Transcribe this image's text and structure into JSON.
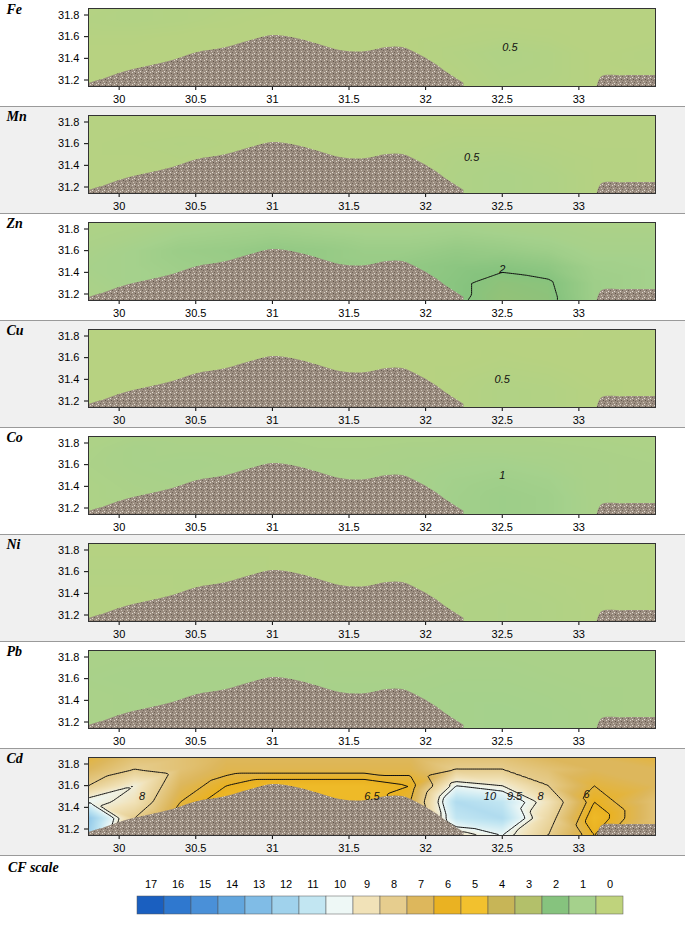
{
  "chart_data": {
    "type": "contour_map",
    "xlim": [
      29.8,
      33.5
    ],
    "xticks": [
      30,
      30.5,
      31,
      31.5,
      32,
      32.5,
      33
    ],
    "ylim": [
      31.14,
      31.86
    ],
    "yticks": [
      31.2,
      31.4,
      31.6,
      31.8
    ],
    "cell_lon": [
      29.8,
      30.1,
      30.4,
      30.7,
      31.0,
      31.3,
      31.6,
      31.9,
      32.2,
      32.5,
      32.8,
      33.1,
      33.5
    ],
    "cell_lat": [
      31.14,
      31.3,
      31.45,
      31.6,
      31.75,
      31.86
    ],
    "land": [
      [
        [
          29.8,
          31.17
        ],
        [
          29.9,
          31.21
        ],
        [
          30.0,
          31.26
        ],
        [
          30.1,
          31.3
        ],
        [
          30.2,
          31.33
        ],
        [
          30.35,
          31.38
        ],
        [
          30.5,
          31.45
        ],
        [
          30.7,
          31.5
        ],
        [
          30.85,
          31.56
        ],
        [
          31.0,
          31.61
        ],
        [
          31.1,
          31.6
        ],
        [
          31.2,
          31.57
        ],
        [
          31.3,
          31.53
        ],
        [
          31.45,
          31.47
        ],
        [
          31.6,
          31.46
        ],
        [
          31.75,
          31.5
        ],
        [
          31.85,
          31.5
        ],
        [
          31.95,
          31.44
        ],
        [
          32.05,
          31.36
        ],
        [
          32.15,
          31.26
        ],
        [
          32.25,
          31.17
        ]
      ],
      [
        [
          33.12,
          31.14
        ],
        [
          33.15,
          31.23
        ],
        [
          33.3,
          31.24
        ],
        [
          33.5,
          31.24
        ]
      ]
    ],
    "panels": [
      {
        "title": "Fe",
        "cf": [
          [
            0.3,
            0.3,
            0.3,
            0.3,
            0.3,
            0.3,
            0.3,
            0.3,
            0.35,
            0.5,
            0.45,
            0.3,
            0.3
          ],
          [
            0.3,
            0.3,
            0.3,
            0.3,
            0.3,
            0.3,
            0.3,
            0.3,
            0.4,
            0.55,
            0.5,
            0.3,
            0.35
          ],
          [
            0.3,
            0.3,
            0.3,
            0.3,
            0.3,
            0.3,
            0.3,
            0.3,
            0.45,
            0.6,
            0.5,
            0.3,
            0.4
          ],
          [
            0.35,
            0.35,
            0.3,
            0.3,
            0.3,
            0.3,
            0.3,
            0.3,
            0.35,
            0.4,
            0.35,
            0.3,
            0.3
          ],
          [
            0.45,
            0.5,
            0.45,
            0.35,
            0.3,
            0.3,
            0.3,
            0.3,
            0.3,
            0.3,
            0.3,
            0.3,
            0.3
          ],
          [
            0.4,
            0.5,
            0.45,
            0.4,
            0.35,
            0.3,
            0.3,
            0.3,
            0.3,
            0.3,
            0.3,
            0.3,
            0.3
          ]
        ],
        "contour_levels": [],
        "labels": [
          {
            "lon": 32.55,
            "lat": 31.5,
            "text": "0.5"
          }
        ]
      },
      {
        "title": "Mn",
        "cf": [
          [
            0.35,
            0.35,
            0.35,
            0.35,
            0.35,
            0.35,
            0.35,
            0.4,
            0.6,
            0.7,
            0.6,
            0.4,
            0.35
          ],
          [
            0.35,
            0.35,
            0.35,
            0.35,
            0.35,
            0.35,
            0.35,
            0.4,
            0.6,
            0.7,
            0.6,
            0.4,
            0.35
          ],
          [
            0.35,
            0.35,
            0.4,
            0.35,
            0.35,
            0.35,
            0.35,
            0.4,
            0.55,
            0.6,
            0.5,
            0.4,
            0.35
          ],
          [
            0.35,
            0.4,
            0.45,
            0.4,
            0.35,
            0.35,
            0.35,
            0.35,
            0.45,
            0.45,
            0.4,
            0.35,
            0.35
          ],
          [
            0.35,
            0.35,
            0.35,
            0.35,
            0.35,
            0.35,
            0.35,
            0.35,
            0.35,
            0.35,
            0.35,
            0.35,
            0.35
          ],
          [
            0.35,
            0.35,
            0.35,
            0.35,
            0.35,
            0.35,
            0.35,
            0.3,
            0.25,
            0.25,
            0.3,
            0.35,
            0.35
          ]
        ],
        "contour_levels": [],
        "labels": [
          {
            "lon": 32.3,
            "lat": 31.47,
            "text": "0.5"
          }
        ]
      },
      {
        "title": "Zn",
        "cf": [
          [
            0.7,
            0.9,
            1.0,
            1.1,
            1.2,
            1.3,
            1.3,
            1.5,
            1.9,
            2.3,
            2.2,
            1.2,
            1.0
          ],
          [
            0.8,
            1.0,
            1.1,
            1.2,
            1.3,
            1.4,
            1.4,
            1.6,
            1.9,
            2.2,
            2.1,
            1.2,
            1.0
          ],
          [
            0.9,
            1.0,
            1.2,
            1.3,
            1.5,
            1.5,
            1.4,
            1.6,
            1.8,
            1.9,
            1.7,
            1.1,
            1.0
          ],
          [
            0.8,
            1.0,
            1.3,
            1.4,
            1.6,
            1.5,
            1.3,
            1.3,
            1.5,
            1.4,
            1.2,
            0.9,
            0.9
          ],
          [
            0.7,
            0.8,
            1.0,
            1.1,
            1.2,
            1.1,
            1.0,
            1.0,
            1.1,
            1.0,
            0.9,
            0.8,
            0.8
          ],
          [
            0.6,
            0.7,
            0.8,
            0.9,
            1.0,
            0.9,
            0.8,
            0.8,
            0.9,
            0.8,
            0.8,
            0.7,
            0.7
          ]
        ],
        "contour_levels": [
          2
        ],
        "labels": [
          {
            "lon": 32.5,
            "lat": 31.43,
            "text": "2"
          }
        ]
      },
      {
        "title": "Cu",
        "cf": [
          [
            0.3,
            0.3,
            0.3,
            0.3,
            0.3,
            0.3,
            0.3,
            0.3,
            0.4,
            0.55,
            0.5,
            0.35,
            0.3
          ],
          [
            0.3,
            0.3,
            0.3,
            0.3,
            0.3,
            0.3,
            0.3,
            0.3,
            0.4,
            0.55,
            0.5,
            0.35,
            0.3
          ],
          [
            0.3,
            0.3,
            0.3,
            0.3,
            0.3,
            0.3,
            0.3,
            0.3,
            0.35,
            0.45,
            0.4,
            0.3,
            0.3
          ],
          [
            0.3,
            0.3,
            0.3,
            0.3,
            0.3,
            0.3,
            0.3,
            0.3,
            0.3,
            0.35,
            0.3,
            0.3,
            0.3
          ],
          [
            0.3,
            0.3,
            0.3,
            0.3,
            0.3,
            0.3,
            0.3,
            0.3,
            0.3,
            0.3,
            0.3,
            0.3,
            0.3
          ],
          [
            0.3,
            0.3,
            0.3,
            0.3,
            0.3,
            0.3,
            0.3,
            0.3,
            0.3,
            0.25,
            0.25,
            0.3,
            0.3
          ]
        ],
        "contour_levels": [],
        "labels": [
          {
            "lon": 32.5,
            "lat": 31.4,
            "text": "0.5"
          }
        ]
      },
      {
        "title": "Co",
        "cf": [
          [
            0.7,
            0.7,
            0.75,
            0.75,
            0.8,
            0.8,
            0.8,
            0.9,
            1.1,
            1.25,
            1.15,
            0.8,
            0.75
          ],
          [
            0.7,
            0.75,
            0.8,
            0.8,
            0.8,
            0.8,
            0.8,
            0.9,
            1.1,
            1.25,
            1.15,
            0.8,
            0.75
          ],
          [
            0.7,
            0.8,
            0.85,
            0.85,
            0.85,
            0.8,
            0.8,
            0.9,
            1.05,
            1.15,
            1.05,
            0.8,
            0.75
          ],
          [
            0.75,
            0.85,
            0.9,
            0.85,
            0.85,
            0.8,
            0.8,
            0.85,
            0.95,
            1.0,
            0.9,
            0.8,
            0.75
          ],
          [
            0.7,
            0.85,
            0.8,
            0.8,
            0.8,
            0.75,
            0.75,
            0.8,
            0.8,
            0.8,
            0.8,
            0.75,
            0.7
          ],
          [
            0.65,
            0.75,
            0.75,
            0.75,
            0.75,
            0.7,
            0.7,
            0.7,
            0.75,
            0.75,
            0.7,
            0.7,
            0.7
          ]
        ],
        "contour_levels": [],
        "labels": [
          {
            "lon": 32.5,
            "lat": 31.5,
            "text": "1"
          }
        ]
      },
      {
        "title": "Ni",
        "cf": [
          [
            0.4,
            0.4,
            0.4,
            0.4,
            0.4,
            0.4,
            0.4,
            0.45,
            0.55,
            0.6,
            0.55,
            0.45,
            0.4
          ],
          [
            0.4,
            0.4,
            0.4,
            0.4,
            0.4,
            0.4,
            0.4,
            0.45,
            0.55,
            0.6,
            0.55,
            0.45,
            0.4
          ],
          [
            0.4,
            0.4,
            0.45,
            0.4,
            0.4,
            0.4,
            0.4,
            0.45,
            0.5,
            0.55,
            0.5,
            0.45,
            0.4
          ],
          [
            0.45,
            0.45,
            0.45,
            0.45,
            0.4,
            0.4,
            0.4,
            0.4,
            0.45,
            0.5,
            0.45,
            0.4,
            0.4
          ],
          [
            0.4,
            0.4,
            0.4,
            0.4,
            0.4,
            0.4,
            0.4,
            0.4,
            0.4,
            0.4,
            0.4,
            0.4,
            0.4
          ],
          [
            0.4,
            0.4,
            0.4,
            0.4,
            0.4,
            0.4,
            0.4,
            0.4,
            0.4,
            0.4,
            0.4,
            0.4,
            0.4
          ]
        ],
        "contour_levels": [],
        "labels": []
      },
      {
        "title": "Pb",
        "cf": [
          [
            0.8,
            0.8,
            0.85,
            0.85,
            0.85,
            0.85,
            0.85,
            0.9,
            0.95,
            1.0,
            0.95,
            0.85,
            0.8
          ],
          [
            0.8,
            0.85,
            0.85,
            0.9,
            0.9,
            0.9,
            0.9,
            0.9,
            0.95,
            1.0,
            0.95,
            0.85,
            0.8
          ],
          [
            0.8,
            0.85,
            0.9,
            0.9,
            0.9,
            0.9,
            0.9,
            0.9,
            0.95,
            0.95,
            0.9,
            0.85,
            0.8
          ],
          [
            0.85,
            0.9,
            0.9,
            0.9,
            0.9,
            0.85,
            0.85,
            0.85,
            0.9,
            0.9,
            0.85,
            0.8,
            0.8
          ],
          [
            0.8,
            0.85,
            0.85,
            0.85,
            0.85,
            0.85,
            0.8,
            0.8,
            0.85,
            0.85,
            0.8,
            0.8,
            0.8
          ],
          [
            0.8,
            0.8,
            0.8,
            0.8,
            0.8,
            0.8,
            0.8,
            0.8,
            0.8,
            0.8,
            0.8,
            0.8,
            0.8
          ]
        ],
        "contour_levels": [],
        "labels": []
      },
      {
        "title": "Cd",
        "cf": [
          [
            12,
            7,
            6,
            5.5,
            5.5,
            5.5,
            5.5,
            6,
            9,
            10,
            8,
            6,
            7
          ],
          [
            12.5,
            8,
            6,
            5.5,
            5.5,
            5.5,
            5.5,
            6.5,
            11,
            11.5,
            8.5,
            5.5,
            7.5
          ],
          [
            10,
            9,
            6.5,
            5.5,
            5.5,
            5.5,
            5.5,
            6.5,
            11.5,
            11,
            9,
            6,
            7.5
          ],
          [
            8,
            9.5,
            7,
            6,
            5.5,
            5.5,
            5.5,
            6,
            10,
            9.5,
            8,
            6.5,
            7
          ],
          [
            7,
            8,
            7.5,
            6.8,
            6.8,
            6.8,
            6.8,
            6.8,
            8,
            8,
            7.5,
            7,
            7
          ],
          [
            6.5,
            7.5,
            7.5,
            7,
            7,
            7,
            7,
            7,
            7.5,
            7.5,
            7,
            7,
            6.5
          ]
        ],
        "contour_levels": [
          6,
          6.5,
          8,
          9.5,
          10
        ],
        "labels": [
          {
            "lon": 30.15,
            "lat": 31.5,
            "text": "8"
          },
          {
            "lon": 31.65,
            "lat": 31.5,
            "text": "6.5"
          },
          {
            "lon": 32.42,
            "lat": 31.5,
            "text": "10"
          },
          {
            "lon": 32.58,
            "lat": 31.5,
            "text": "9.5"
          },
          {
            "lon": 32.75,
            "lat": 31.5,
            "text": "8"
          },
          {
            "lon": 33.05,
            "lat": 31.52,
            "text": "6"
          }
        ]
      }
    ],
    "color_bar": {
      "title": "CF scale",
      "ticks": [
        17,
        16,
        15,
        14,
        13,
        12,
        11,
        10,
        9,
        8,
        7,
        6,
        5,
        4,
        3,
        2,
        1,
        0
      ],
      "colors": [
        "#1a5fc0",
        "#2f78cf",
        "#4a90d8",
        "#62a6de",
        "#80bce6",
        "#a0d2ec",
        "#c2e6f2",
        "#eef8f6",
        "#f1e2b8",
        "#e6cd8e",
        "#ddb75c",
        "#eab222",
        "#f2c12e",
        "#c7b557",
        "#b3c06a",
        "#86c37e",
        "#a5d18c",
        "#bfd37c"
      ]
    }
  }
}
